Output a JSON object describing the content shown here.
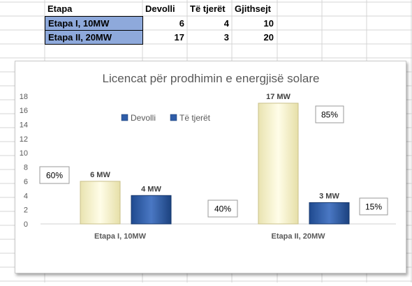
{
  "table": {
    "headers": [
      "Etapa",
      "Devolli",
      "Të tjerët",
      "Gjithsejt"
    ],
    "rows": [
      {
        "etapa": "Etapa I, 10MW",
        "devolli": "6",
        "te_tjeret": "4",
        "gjithsejt": "10"
      },
      {
        "etapa": "Etapa II, 20MW",
        "devolli": "17",
        "te_tjeret": "3",
        "gjithsejt": "20"
      }
    ]
  },
  "colors": {
    "selected_row_fill": "#8ea9db",
    "grid_line": "#d4d4d4",
    "devolli_bar": "#f7f3cd",
    "te_tjeret_bar": "#2f5da8"
  },
  "chart_data": {
    "type": "bar",
    "title": "Licencat për prodhimin e energjisë solare",
    "categories": [
      "Etapa I, 10MW",
      "Etapa II, 20MW"
    ],
    "series": [
      {
        "name": "Devolli",
        "values": [
          6,
          17
        ],
        "labels": [
          "6 MW",
          "17 MW"
        ],
        "color": "#f7f3cd"
      },
      {
        "name": "Të tjerët",
        "values": [
          4,
          3
        ],
        "labels": [
          "4 MW",
          "3 MW"
        ],
        "color": "#2f5da8"
      }
    ],
    "ylim": [
      0,
      18
    ],
    "yticks": [
      0,
      2,
      4,
      6,
      8,
      10,
      12,
      14,
      16,
      18
    ],
    "grid": false,
    "legend": "top-left",
    "percent_labels": [
      "60%",
      "40%",
      "85%",
      "15%"
    ]
  }
}
